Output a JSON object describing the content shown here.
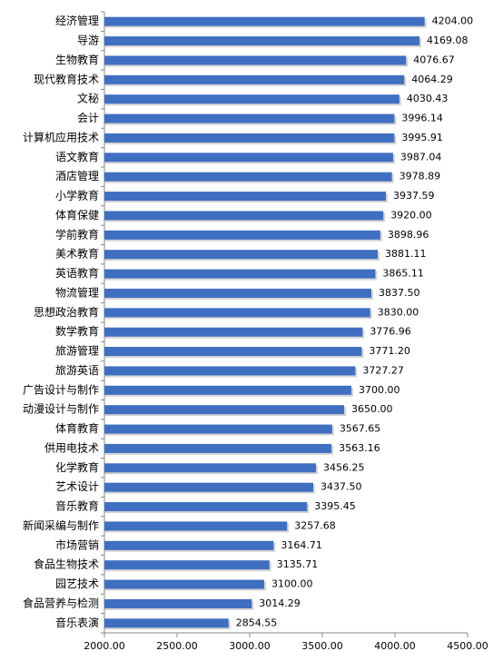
{
  "chart_data": {
    "type": "bar",
    "orientation": "horizontal",
    "color": "#3f6fc1",
    "categories": [
      "经济管理",
      "导游",
      "生物教育",
      "现代教育技术",
      "文秘",
      "会计",
      "计算机应用技术",
      "语文教育",
      "酒店管理",
      "小学教育",
      "体育保健",
      "学前教育",
      "美术教育",
      "英语教育",
      "物流管理",
      "思想政治教育",
      "数学教育",
      "旅游管理",
      "旅游英语",
      "广告设计与制作",
      "动漫设计与制作",
      "体育教育",
      "供用电技术",
      "化学教育",
      "艺术设计",
      "音乐教育",
      "新闻采编与制作",
      "市场营销",
      "食品生物技术",
      "园艺技术",
      "食品营养与检测",
      "音乐表演"
    ],
    "values": [
      4204.0,
      4169.08,
      4076.67,
      4064.29,
      4030.43,
      3996.14,
      3995.91,
      3987.04,
      3978.89,
      3937.59,
      3920.0,
      3898.96,
      3881.11,
      3865.11,
      3837.5,
      3830.0,
      3776.96,
      3771.2,
      3727.27,
      3700.0,
      3650.0,
      3567.65,
      3563.16,
      3456.25,
      3437.5,
      3395.45,
      3257.68,
      3164.71,
      3135.71,
      3100.0,
      3014.29,
      2854.55
    ],
    "value_labels": [
      "4204.00",
      "4169.08",
      "4076.67",
      "4064.29",
      "4030.43",
      "3996.14",
      "3995.91",
      "3987.04",
      "3978.89",
      "3937.59",
      "3920.00",
      "3898.96",
      "3881.11",
      "3865.11",
      "3837.50",
      "3830.00",
      "3776.96",
      "3771.20",
      "3727.27",
      "3700.00",
      "3650.00",
      "3567.65",
      "3563.16",
      "3456.25",
      "3437.50",
      "3395.45",
      "3257.68",
      "3164.71",
      "3135.71",
      "3100.00",
      "3014.29",
      "2854.55"
    ],
    "xlim": [
      2000,
      4500
    ],
    "xticks": [
      {
        "value": 2000,
        "label": "2000.00"
      },
      {
        "value": 2500,
        "label": "2500.00"
      },
      {
        "value": 3000,
        "label": "3000.00"
      },
      {
        "value": 3500,
        "label": "3500.00"
      },
      {
        "value": 4000,
        "label": "4000.00"
      },
      {
        "value": 4500,
        "label": "4500.00"
      }
    ]
  }
}
